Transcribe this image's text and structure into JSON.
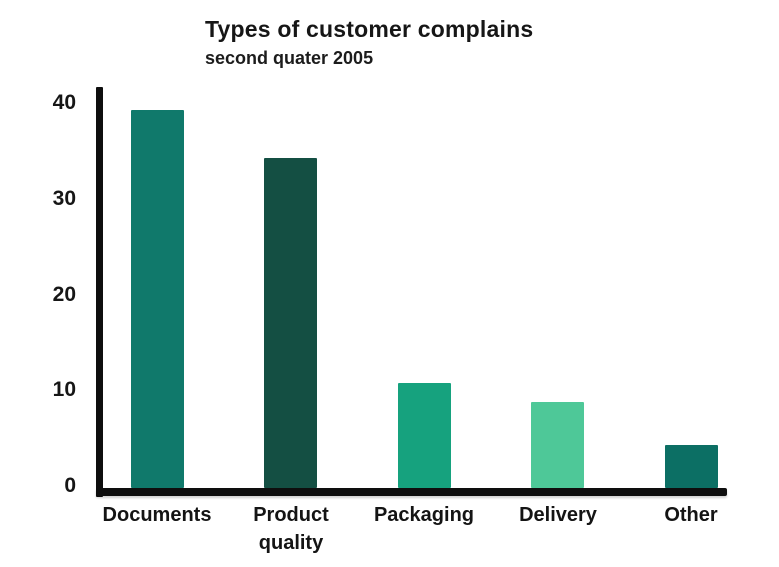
{
  "chart_data": {
    "type": "bar",
    "title": "Types of customer complains",
    "subtitle": "second quater 2005",
    "categories": [
      "Documents",
      "Product quality",
      "Packaging",
      "Delivery",
      "Other"
    ],
    "values": [
      39.5,
      34.5,
      11,
      9,
      4.5
    ],
    "bar_colors": [
      "#10796b",
      "#144f43",
      "#16a27e",
      "#4ec898",
      "#0c6f64"
    ],
    "yticks": [
      0,
      10,
      20,
      30,
      40
    ],
    "ylim": [
      0,
      42
    ],
    "xlabel": "",
    "ylabel": "",
    "grid": false,
    "legend": false,
    "axis_color": "#0e0e0e",
    "text_color": "#161616",
    "background_color": "#ffffff"
  }
}
